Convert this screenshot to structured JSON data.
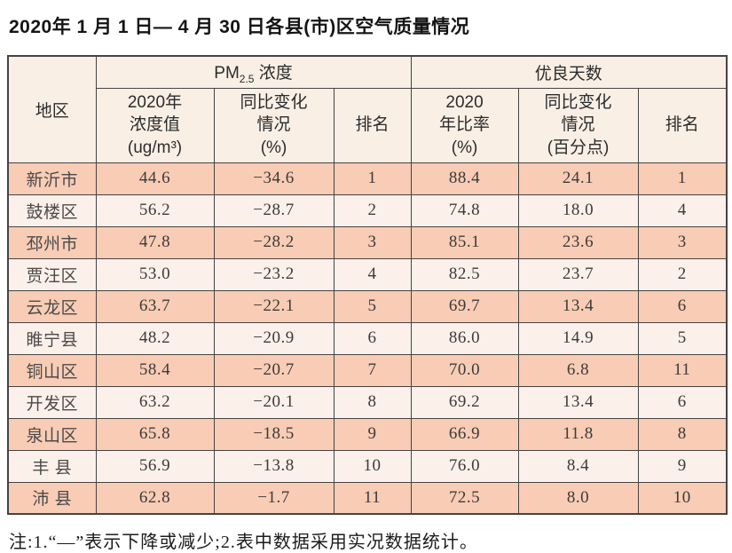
{
  "page": {
    "title": "2020年 1 月 1 日— 4 月 30 日各县(市)区空气质量情况",
    "footnote": "注:1.“—”表示下降或减少;2.表中数据采用实况数据统计。"
  },
  "table": {
    "header": {
      "region": "地区",
      "pm_group_prefix": "PM",
      "pm_group_sub": "2.5",
      "pm_group_suffix": " 浓度",
      "good_group": "优良天数",
      "sub_cols": [
        "2020年\n浓度值\n(ug/m³)",
        "同比变化\n情况\n(%)",
        "排名",
        "2020\n年比率\n(%)",
        "同比变化\n情况\n(百分点)",
        "排名"
      ]
    },
    "rows": [
      [
        "新沂市",
        "44.6",
        "−34.6",
        "1",
        "88.4",
        "24.1",
        "1"
      ],
      [
        "鼓楼区",
        "56.2",
        "−28.7",
        "2",
        "74.8",
        "18.0",
        "4"
      ],
      [
        "邳州市",
        "47.8",
        "−28.2",
        "3",
        "85.1",
        "23.6",
        "3"
      ],
      [
        "贾汪区",
        "53.0",
        "−23.2",
        "4",
        "82.5",
        "23.7",
        "2"
      ],
      [
        "云龙区",
        "63.7",
        "−22.1",
        "5",
        "69.7",
        "13.4",
        "6"
      ],
      [
        "睢宁县",
        "48.2",
        "−20.9",
        "6",
        "86.0",
        "14.9",
        "5"
      ],
      [
        "铜山区",
        "58.4",
        "−20.7",
        "7",
        "70.0",
        "6.8",
        "11"
      ],
      [
        "开发区",
        "63.2",
        "−20.1",
        "8",
        "69.2",
        "13.4",
        "6"
      ],
      [
        "泉山区",
        "65.8",
        "−18.5",
        "9",
        "66.9",
        "11.8",
        "8"
      ],
      [
        "丰 县",
        "56.9",
        "−13.8",
        "10",
        "76.0",
        "8.4",
        "9"
      ],
      [
        "沛 县",
        "62.8",
        "−1.7",
        "11",
        "72.5",
        "8.0",
        "10"
      ]
    ]
  },
  "colors": {
    "row_odd": "#f8ccb5",
    "row_even": "#fcf0ea",
    "header_bg": "#f9efe5",
    "border": "#454442"
  }
}
